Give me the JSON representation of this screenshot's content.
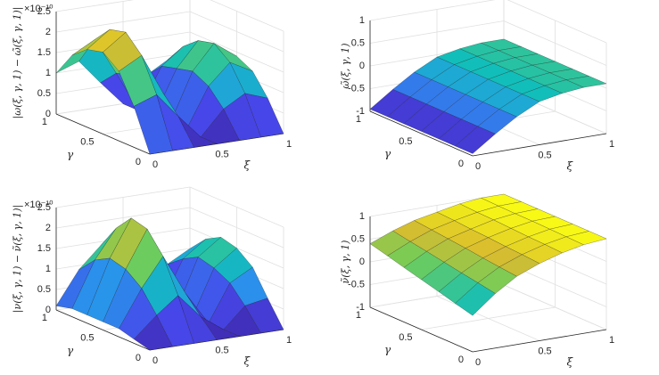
{
  "chart_data": [
    {
      "type": "surface",
      "colormap": "parula",
      "grid": true,
      "zlabel": "|ω(ξ, γ, 1) − ω̃(ξ, γ, 1)|",
      "xlabel": "ξ",
      "ylabel": "γ",
      "exponent_label": "×10⁻¹⁰",
      "x": [
        0,
        0.17,
        0.33,
        0.5,
        0.67,
        0.83,
        1
      ],
      "y": [
        0,
        0.17,
        0.33,
        0.5,
        0.67,
        0.83,
        1
      ],
      "z": [
        [
          0,
          0,
          0,
          0,
          0,
          0,
          0
        ],
        [
          1.0,
          1.2,
          0.6,
          0,
          0.6,
          0.9,
          0.7
        ],
        [
          1.7,
          2.0,
          1.0,
          0,
          1.0,
          1.5,
          1.2
        ],
        [
          2.0,
          2.4,
          1.2,
          0,
          1.2,
          1.8,
          1.4
        ],
        [
          1.9,
          2.3,
          1.1,
          0,
          1.1,
          1.7,
          1.3
        ],
        [
          1.6,
          1.9,
          1.0,
          0,
          1.0,
          1.4,
          1.1
        ],
        [
          1.0,
          1.2,
          0.6,
          0,
          0.6,
          0.9,
          0.7
        ]
      ],
      "xlim": [
        0,
        1
      ],
      "ylim": [
        0,
        1
      ],
      "zlim": [
        0,
        2.5
      ],
      "xticks": [
        0,
        0.5,
        1
      ],
      "yticks": [
        0,
        0.5,
        1
      ],
      "zticks": [
        0,
        0.5,
        1,
        1.5,
        2,
        2.5
      ]
    },
    {
      "type": "surface",
      "colormap": "parula",
      "grid": true,
      "zlabel": "ω̃(ξ, γ, 1)",
      "xlabel": "ξ",
      "ylabel": "γ",
      "x": [
        0,
        0.17,
        0.33,
        0.5,
        0.67,
        0.83,
        1
      ],
      "y": [
        0,
        0.17,
        0.33,
        0.5,
        0.67,
        0.83,
        1
      ],
      "z": [
        [
          -0.95,
          -0.6,
          -0.3,
          -0.05,
          0.05,
          0.1,
          0.1
        ],
        [
          -0.95,
          -0.6,
          -0.3,
          -0.05,
          0.05,
          0.1,
          0.1
        ],
        [
          -0.95,
          -0.6,
          -0.3,
          -0.05,
          0.05,
          0.1,
          0.1
        ],
        [
          -0.95,
          -0.6,
          -0.3,
          -0.05,
          0.05,
          0.1,
          0.1
        ],
        [
          -0.95,
          -0.6,
          -0.3,
          -0.05,
          0.05,
          0.1,
          0.1
        ],
        [
          -0.95,
          -0.6,
          -0.3,
          -0.05,
          0.05,
          0.1,
          0.1
        ],
        [
          -0.95,
          -0.6,
          -0.3,
          -0.05,
          0.05,
          0.1,
          0.1
        ]
      ],
      "xlim": [
        0,
        1
      ],
      "ylim": [
        0,
        1
      ],
      "zlim": [
        -1,
        1
      ],
      "xticks": [
        0,
        0.5,
        1
      ],
      "yticks": [
        0,
        0.5,
        1
      ],
      "zticks": [
        -1,
        -0.5,
        0,
        0.5,
        1
      ]
    },
    {
      "type": "surface",
      "colormap": "parula",
      "grid": true,
      "zlabel": "|ν(ξ, γ, 1) − ν̃(ξ, γ, 1)|",
      "xlabel": "ξ",
      "ylabel": "γ",
      "exponent_label": "×10⁻¹⁰",
      "x": [
        0,
        0.17,
        0.33,
        0.5,
        0.67,
        0.83,
        1
      ],
      "y": [
        0,
        0.17,
        0.33,
        0.5,
        0.67,
        0.83,
        1
      ],
      "z": [
        [
          0,
          0,
          0,
          0,
          0,
          0,
          0
        ],
        [
          0.1,
          0.6,
          1.0,
          0.4,
          0,
          0.5,
          0.6
        ],
        [
          0.2,
          1.1,
          1.8,
          0.8,
          0,
          0.9,
          1.2
        ],
        [
          0.2,
          1.4,
          2.3,
          1.0,
          0,
          1.1,
          1.5
        ],
        [
          0.2,
          1.5,
          2.4,
          1.0,
          0,
          1.2,
          1.6
        ],
        [
          0.2,
          1.3,
          2.0,
          0.9,
          0,
          1.0,
          1.4
        ],
        [
          0.1,
          0.9,
          1.4,
          0.6,
          0,
          0.7,
          1.0
        ]
      ],
      "xlim": [
        0,
        1
      ],
      "ylim": [
        0,
        1
      ],
      "zlim": [
        0,
        2.5
      ],
      "xticks": [
        0,
        0.5,
        1
      ],
      "yticks": [
        0,
        0.5,
        1
      ],
      "zticks": [
        0,
        0.5,
        1,
        1.5,
        2,
        2.5
      ]
    },
    {
      "type": "surface",
      "colormap": "parula",
      "grid": true,
      "zlabel": "ν̃(ξ, γ, 1)",
      "xlabel": "ξ",
      "ylabel": "γ",
      "x": [
        0,
        0.17,
        0.33,
        0.5,
        0.67,
        0.83,
        1
      ],
      "y": [
        0,
        0.17,
        0.33,
        0.5,
        0.67,
        0.83,
        1
      ],
      "z": [
        [
          -0.2,
          0.2,
          0.5,
          0.7,
          0.85,
          0.95,
          1
        ],
        [
          -0.1,
          0.27,
          0.54,
          0.73,
          0.87,
          0.96,
          1
        ],
        [
          0,
          0.33,
          0.58,
          0.75,
          0.88,
          0.97,
          1
        ],
        [
          0.1,
          0.4,
          0.63,
          0.78,
          0.9,
          0.98,
          1
        ],
        [
          0.2,
          0.47,
          0.67,
          0.8,
          0.92,
          0.98,
          1
        ],
        [
          0.3,
          0.53,
          0.71,
          0.83,
          0.93,
          0.99,
          1
        ],
        [
          0.4,
          0.6,
          0.75,
          0.85,
          0.95,
          1,
          1
        ]
      ],
      "xlim": [
        0,
        1
      ],
      "ylim": [
        0,
        1
      ],
      "zlim": [
        -1,
        1
      ],
      "xticks": [
        0,
        0.5,
        1
      ],
      "yticks": [
        0,
        0.5,
        1
      ],
      "zticks": [
        -1,
        -0.5,
        0,
        0.5,
        1
      ]
    }
  ]
}
